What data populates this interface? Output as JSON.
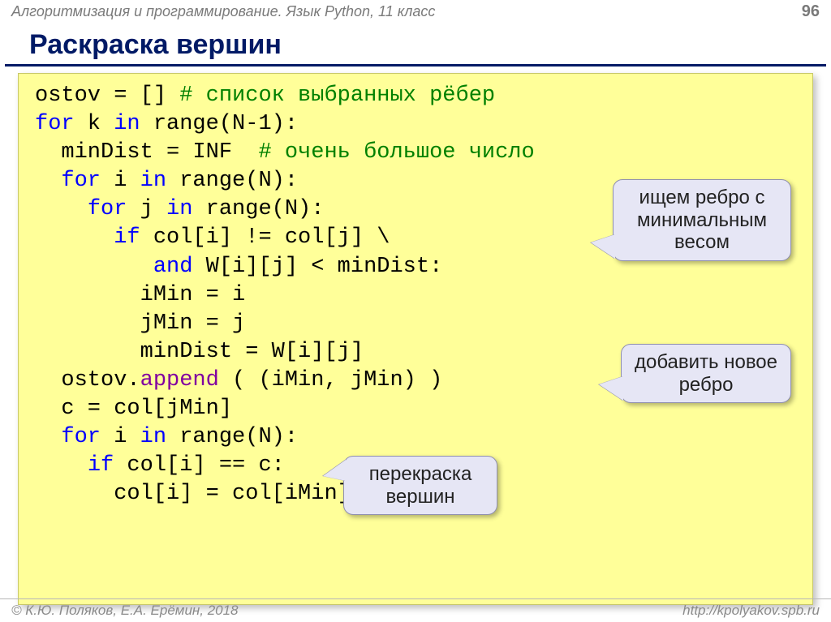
{
  "header": {
    "subject": "Алгоритмизация и программирование. Язык Python, 11 класс",
    "page": "96"
  },
  "title": "Раскраска вершин",
  "code": {
    "l1a": "ostov = [] ",
    "l1c": "# список выбранных рёбер",
    "l2a": "for",
    "l2b": " k ",
    "l2c": "in",
    "l2d": " range(N-1):",
    "l3a": "  minDist = INF  ",
    "l3c": "# очень большое число",
    "l4a": "  ",
    "l4b": "for",
    "l4c": " i ",
    "l4d": "in",
    "l4e": " range(N):",
    "l5a": "    ",
    "l5b": "for",
    "l5c": " j ",
    "l5d": "in",
    "l5e": " range(N):",
    "l6a": "      ",
    "l6b": "if",
    "l6c": " col[i] != col[j] \\",
    "l7a": "         ",
    "l7b": "and",
    "l7c": " W[i][j] < minDist:",
    "l8": "        iMin = i",
    "l9": "        jMin = j",
    "l10": "        minDist = W[i][j]",
    "l11a": "  ostov.",
    "l11b": "append",
    "l11c": " ( (iMin, jMin) )",
    "l12": "  c = col[jMin]",
    "l13a": "  ",
    "l13b": "for",
    "l13c": " i ",
    "l13d": "in",
    "l13e": " range(N):",
    "l14a": "    ",
    "l14b": "if",
    "l14c": " col[i] == c:",
    "l15": "      col[i] = col[iMin]"
  },
  "callouts": {
    "c1": "ищем ребро с минимальным весом",
    "c2": "добавить новое ребро",
    "c3": "перекраска вершин"
  },
  "footer": {
    "left": "© К.Ю. Поляков, Е.А. Ерёмин, 2018",
    "right": "http://kpolyakov.spb.ru"
  },
  "colors": {
    "code_bg": "#ffff99",
    "keyword": "#0000ff",
    "comment": "#008000",
    "func": "#8000a0",
    "title": "#001a66",
    "callout_bg": "#e6e6f5"
  }
}
